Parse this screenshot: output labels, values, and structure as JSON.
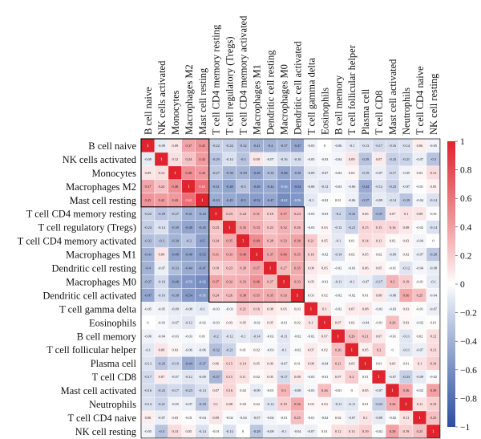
{
  "chart_data": {
    "type": "heatmap",
    "variables": [
      "B cell naive",
      "NK cells activated",
      "Monocytes",
      "Macrophages M2",
      "Mast cell resting",
      "T cell CD4 memory resting",
      "T cell regulatory (Tregs)",
      "T cell CD4 memory activated",
      "Macrophages M1",
      "Dendritic cell resting",
      "Macrophages M0",
      "Dendritic cell activated",
      "T cell gamma delta",
      "Eosinophils",
      "B cell memory",
      "T cell follicular helper",
      "Plasma cell",
      "T cell CD8",
      "Mast cell activated",
      "Neutrophils",
      "T cell CD4 naive",
      "NK cell resting"
    ],
    "matrix": [
      [
        1,
        -0.09,
        0.09,
        0.37,
        0.45,
        -0.22,
        -0.24,
        -0.32,
        -0.41,
        -0.4,
        -0.37,
        -0.47,
        -0.05,
        0,
        -0.06,
        -0.1,
        -0.13,
        -0.17,
        -0.16,
        -0.14,
        0.06,
        -0.05
      ],
      [
        -0.09,
        1,
        0.12,
        0.24,
        0.42,
        -0.29,
        -0.14,
        -0.3,
        0.09,
        -0.07,
        -0.16,
        -0.16,
        -0.05,
        -0.03,
        -0.04,
        0.09,
        -0.29,
        0.07,
        -0.23,
        -0.21,
        -0.07,
        -0.3
      ],
      [
        0.09,
        0.12,
        1,
        0.48,
        0.43,
        -0.27,
        -0.39,
        -0.39,
        -0.48,
        -0.33,
        -0.48,
        -0.38,
        -0.09,
        -0.07,
        -0.03,
        0.03,
        -0.19,
        -0.07,
        -0.17,
        -0.05,
        0.03,
        0.13
      ],
      [
        0.37,
        0.24,
        0.48,
        1,
        0.63,
        -0.41,
        -0.48,
        -0.3,
        -0.48,
        -0.44,
        -0.56,
        -0.54,
        -0.08,
        -0.12,
        -0.03,
        -0.06,
        -0.44,
        -0.12,
        -0.23,
        -0.07,
        -0.01,
        0.05
      ],
      [
        0.45,
        0.42,
        0.43,
        0.63,
        1,
        -0.43,
        -0.45,
        -0.5,
        -0.52,
        -0.47,
        -0.62,
        -0.56,
        -0.1,
        -0.02,
        0.01,
        -0.06,
        -0.37,
        -0.09,
        -0.14,
        -0.29,
        -0.04,
        -0.14
      ],
      [
        -0.22,
        -0.29,
        -0.27,
        -0.41,
        -0.43,
        1,
        0.23,
        0.24,
        0.31,
        0.18,
        0.37,
        0.24,
        -0.03,
        -0.03,
        -0.2,
        -0.32,
        0.06,
        -0.37,
        0.07,
        0.1,
        0.09,
        -0.01
      ],
      [
        -0.24,
        -0.14,
        -0.39,
        -0.48,
        -0.45,
        0.23,
        1,
        0.35,
        0.33,
        0.23,
        0.32,
        0.26,
        -0.03,
        0.03,
        -0.12,
        -0.21,
        0.15,
        0.15,
        0.16,
        0.08,
        -0.02,
        -0.14
      ],
      [
        -0.32,
        -0.3,
        -0.39,
        -0.3,
        -0.5,
        0.24,
        0.35,
        1,
        0.49,
        0.28,
        0.33,
        0.38,
        0.21,
        0.05,
        -0.1,
        0.01,
        0.14,
        0.11,
        0.02,
        0.03,
        -0.04,
        0
      ],
      [
        -0.41,
        0.09,
        -0.48,
        -0.48,
        -0.52,
        0.31,
        0.33,
        0.49,
        1,
        0.37,
        0.46,
        0.35,
        0.16,
        -0.02,
        -0.14,
        0.02,
        0.05,
        0.02,
        -0.09,
        0.02,
        -0.07,
        -0.28
      ],
      [
        -0.4,
        -0.07,
        -0.33,
        -0.44,
        -0.47,
        0.18,
        0.23,
        0.28,
        0.37,
        1,
        0.27,
        0.35,
        0.08,
        0.05,
        -0.02,
        -0.03,
        0.06,
        0.05,
        -0.01,
        -0.12,
        -0.04,
        -0.08
      ],
      [
        -0.37,
        -0.16,
        -0.48,
        -0.56,
        -0.62,
        0.37,
        0.32,
        0.33,
        0.46,
        0.27,
        1,
        0.33,
        0.05,
        -0.01,
        -0.11,
        -0.1,
        -0.07,
        -0.17,
        0.3,
        0.19,
        -0.01,
        -0.1
      ],
      [
        -0.47,
        -0.16,
        -0.38,
        -0.54,
        -0.56,
        0.24,
        0.26,
        0.38,
        0.35,
        0.35,
        0.33,
        1,
        0.03,
        0.02,
        -0.02,
        -0.02,
        0.01,
        0.08,
        -0.08,
        0.36,
        0.25,
        -0.04
      ],
      [
        -0.05,
        -0.05,
        -0.09,
        -0.08,
        -0.1,
        -0.03,
        -0.03,
        0.21,
        0.16,
        0.08,
        0.05,
        0.03,
        1,
        0.1,
        -0.02,
        0.07,
        0.08,
        -0.03,
        -0.03,
        0.03,
        -0.01,
        -0.07
      ],
      [
        0,
        -0.03,
        -0.07,
        -0.12,
        -0.02,
        -0.03,
        0.03,
        0.05,
        -0.02,
        0.05,
        -0.01,
        0.02,
        0.1,
        1,
        0.07,
        0.02,
        -0.04,
        -0.01,
        0.26,
        0.03,
        -0.02,
        0.01
      ],
      [
        -0.06,
        -0.04,
        -0.03,
        -0.03,
        0.01,
        -0.2,
        -0.12,
        -0.1,
        -0.14,
        -0.02,
        -0.11,
        -0.02,
        -0.02,
        0.07,
        1,
        0.26,
        0.21,
        0.07,
        -0.01,
        -0.11,
        0.02,
        0.12
      ],
      [
        -0.1,
        0.09,
        0.03,
        -0.06,
        -0.06,
        -0.32,
        -0.21,
        0.01,
        0.02,
        -0.03,
        -0.1,
        -0.02,
        0.07,
        0.02,
        0.26,
        1,
        0.05,
        0.2,
        0,
        -0.11,
        -0.07,
        0.13
      ],
      [
        -0.13,
        -0.29,
        -0.19,
        -0.44,
        -0.37,
        0.06,
        0.15,
        0.14,
        0.05,
        0.06,
        -0.07,
        0.01,
        0.08,
        -0.04,
        0.21,
        0.05,
        1,
        0.01,
        0.05,
        0.01,
        0.1,
        0.19
      ],
      [
        -0.17,
        0.07,
        -0.07,
        -0.12,
        -0.09,
        -0.37,
        0.15,
        0.11,
        0.02,
        0.05,
        -0.17,
        0.08,
        -0.03,
        -0.01,
        0.07,
        0.2,
        0.01,
        1,
        -0.07,
        -0.23,
        -0.09,
        -0.02
      ],
      [
        -0.16,
        -0.23,
        -0.17,
        -0.23,
        -0.14,
        0.07,
        0.16,
        0.02,
        -0.09,
        -0.01,
        0.3,
        -0.08,
        -0.03,
        0.26,
        -0.01,
        0,
        0.05,
        -0.07,
        1,
        0.36,
        -0.02,
        0.39
      ],
      [
        -0.14,
        -0.21,
        -0.05,
        -0.07,
        -0.29,
        0.1,
        0.08,
        0.03,
        0.02,
        -0.12,
        0.19,
        0.36,
        0.03,
        0.03,
        -0.11,
        -0.11,
        0.01,
        -0.23,
        0.36,
        1,
        0.11,
        0.19
      ],
      [
        0.06,
        -0.07,
        0.03,
        -0.01,
        -0.04,
        0.09,
        -0.02,
        -0.04,
        -0.07,
        -0.04,
        -0.01,
        0.25,
        -0.01,
        -0.02,
        0.02,
        -0.07,
        0.1,
        -0.09,
        -0.02,
        0.11,
        1,
        0.25
      ],
      [
        -0.05,
        -0.3,
        0.13,
        0.05,
        -0.14,
        -0.01,
        -0.14,
        0,
        -0.28,
        -0.08,
        -0.1,
        -0.04,
        -0.07,
        0.01,
        0.12,
        0.13,
        0.19,
        -0.02,
        0.39,
        0.19,
        0.25,
        1
      ]
    ],
    "colorbar": {
      "range": [
        -1,
        1
      ],
      "ticks": [
        "1",
        "0.8",
        "0.6",
        "0.4",
        "0.2",
        "0",
        "−0.2",
        "−0.4",
        "−0.6",
        "−0.8",
        "−1"
      ],
      "colors": {
        "negative": "#2b4fa0",
        "neutral": "#ffffff",
        "positive": "#e0242d"
      }
    },
    "legend": "colorbar-right"
  }
}
